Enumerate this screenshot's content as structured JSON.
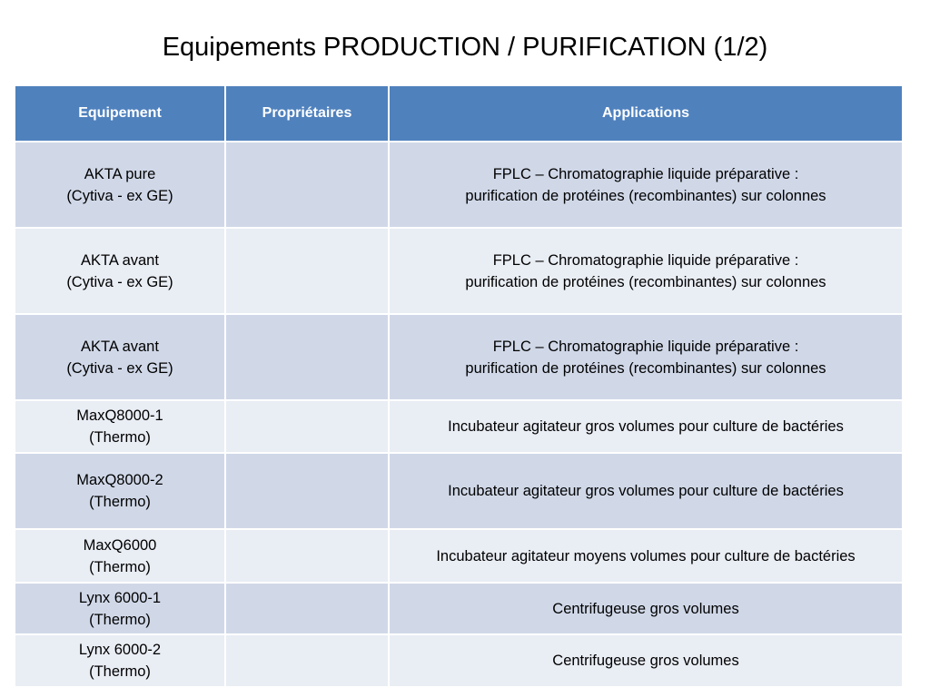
{
  "title": "Equipements PRODUCTION / PURIFICATION (1/2)",
  "table": {
    "headers": [
      "Equipement",
      "Propriétaires",
      "Applications"
    ],
    "rows": [
      {
        "equipement": [
          "AKTA pure",
          "(Cytiva - ex GE)"
        ],
        "proprietaires": "",
        "applications": [
          "FPLC – Chromatographie liquide préparative :",
          "purification de protéines (recombinantes) sur colonnes"
        ]
      },
      {
        "equipement": [
          "AKTA avant",
          "(Cytiva - ex GE)"
        ],
        "proprietaires": "",
        "applications": [
          "FPLC – Chromatographie liquide préparative :",
          "purification de protéines (recombinantes) sur colonnes"
        ]
      },
      {
        "equipement": [
          "AKTA avant",
          "(Cytiva - ex GE)"
        ],
        "proprietaires": "",
        "applications": [
          "FPLC – Chromatographie liquide préparative :",
          "purification de protéines (recombinantes) sur colonnes"
        ]
      },
      {
        "equipement": [
          "MaxQ8000-1",
          "(Thermo)"
        ],
        "proprietaires": "",
        "applications": [
          "Incubateur agitateur gros volumes pour culture de bactéries"
        ]
      },
      {
        "equipement": [
          "MaxQ8000-2",
          "(Thermo)"
        ],
        "proprietaires": "",
        "applications": [
          "Incubateur agitateur gros volumes pour culture de bactéries"
        ]
      },
      {
        "equipement": [
          "MaxQ6000",
          "(Thermo)"
        ],
        "proprietaires": "",
        "applications": [
          "Incubateur agitateur moyens volumes pour culture de bactéries"
        ]
      },
      {
        "equipement": [
          "Lynx 6000-1",
          "(Thermo)"
        ],
        "proprietaires": "",
        "applications": [
          "Centrifugeuse gros volumes"
        ]
      },
      {
        "equipement": [
          "Lynx 6000-2",
          "(Thermo)"
        ],
        "proprietaires": "",
        "applications": [
          "Centrifugeuse gros volumes"
        ]
      }
    ]
  },
  "colors": {
    "header": "#4f81bd",
    "row_odd": "#d0d8e8",
    "row_even": "#e9edf4"
  }
}
